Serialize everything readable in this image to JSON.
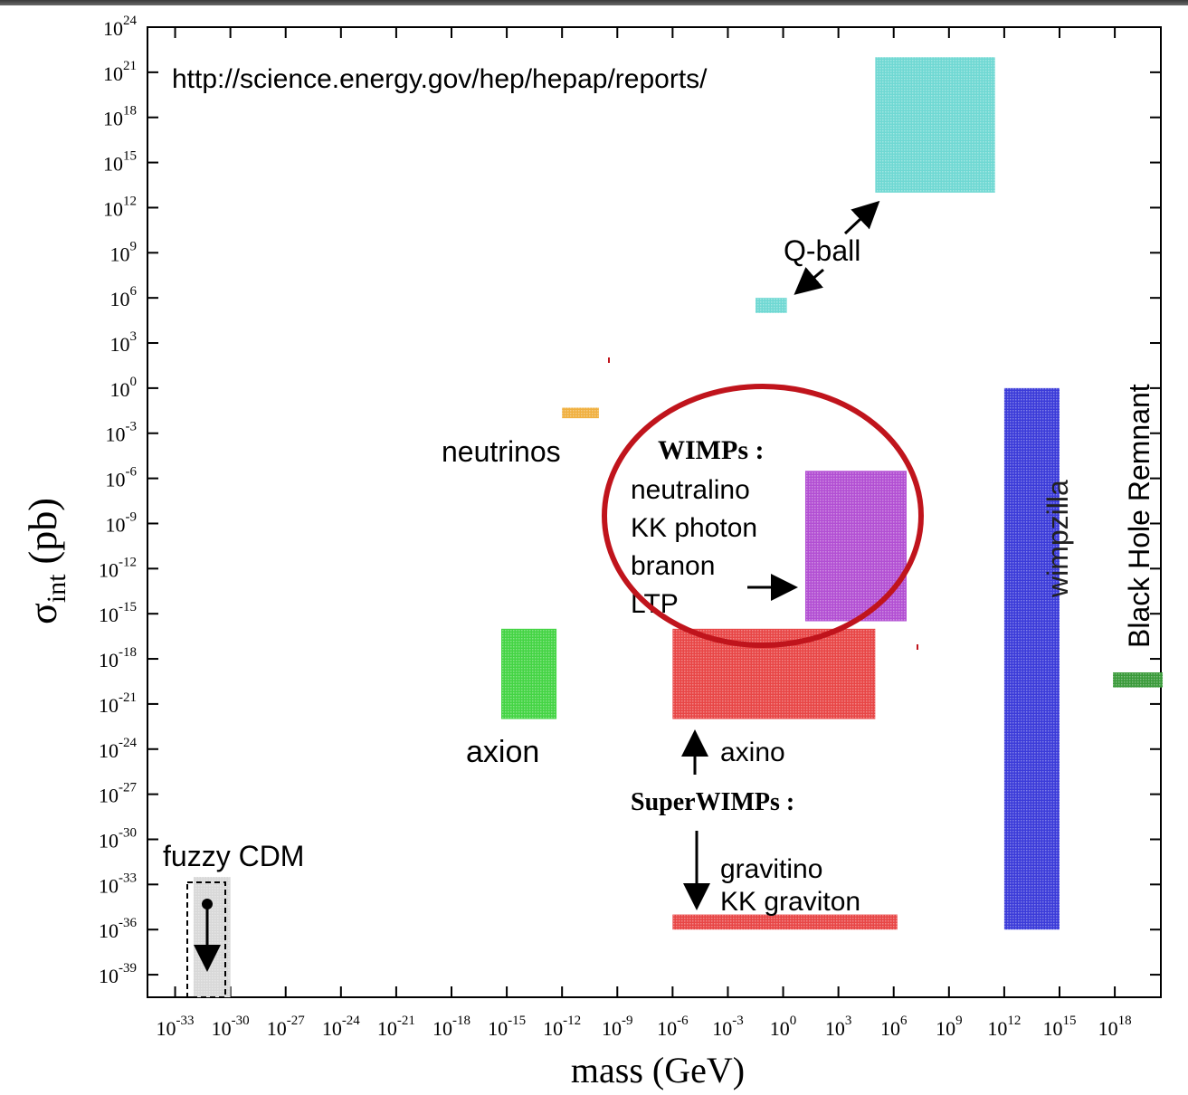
{
  "source_url": "http://science.energy.gov/hep/hepap/reports/",
  "chart_data": {
    "type": "scatter",
    "title": "",
    "xlabel": "mass (GeV)",
    "ylabel_symbol": "σ",
    "ylabel_subscript": "int",
    "ylabel_unit": "(pb)",
    "x_scale": "log10",
    "y_scale": "log10",
    "x_exponent_range": [
      -34.5,
      20.5
    ],
    "y_exponent_range": [
      -40.5,
      24
    ],
    "x_tick_exponents": [
      "-33",
      "-30",
      "-27",
      "-24",
      "-21",
      "-18",
      "-15",
      "-12",
      "-9",
      "-6",
      "-3",
      "0",
      "3",
      "6",
      "9",
      "12",
      "15",
      "18"
    ],
    "y_tick_exponents": [
      "24",
      "21",
      "18",
      "15",
      "12",
      "9",
      "6",
      "3",
      "0",
      "-3",
      "-6",
      "-9",
      "-12",
      "-15",
      "-18",
      "-21",
      "-24",
      "-27",
      "-30",
      "-33",
      "-36",
      "-39"
    ],
    "regions": [
      {
        "name": "Q-ball high",
        "x": [
          5,
          11.5
        ],
        "y": [
          13,
          22
        ],
        "color": "#6fd8d3"
      },
      {
        "name": "Q-ball low",
        "x": [
          -1.5,
          0.2
        ],
        "y": [
          5,
          6
        ],
        "color": "#6fd8d3"
      },
      {
        "name": "neutrinos",
        "x": [
          -12,
          -10
        ],
        "y": [
          -2,
          -1.3
        ],
        "color": "#f0b040"
      },
      {
        "name": "WIMPs",
        "x": [
          1.2,
          6.7
        ],
        "y": [
          -15.5,
          -5.5
        ],
        "color": "#b24fd3"
      },
      {
        "name": "wimpzilla",
        "x": [
          12,
          15
        ],
        "y": [
          -36,
          0
        ],
        "color": "#3b3bd9"
      },
      {
        "name": "Black Hole Remnant",
        "x": [
          17.9,
          20.6
        ],
        "y": [
          -19.9,
          -18.9
        ],
        "color": "#3a9a3a"
      },
      {
        "name": "axion",
        "x": [
          -15.3,
          -12.3
        ],
        "y": [
          -22,
          -16
        ],
        "color": "#44d444"
      },
      {
        "name": "axino",
        "x": [
          -6,
          5
        ],
        "y": [
          -22,
          -16
        ],
        "color": "#e84646"
      },
      {
        "name": "gravitino KK graviton",
        "x": [
          -6,
          6.2
        ],
        "y": [
          -36,
          -35
        ],
        "color": "#e84646"
      },
      {
        "name": "fuzzy CDM",
        "x": [
          -32,
          -30
        ],
        "y": [
          -40.5,
          -32.5
        ],
        "color": "#d8d8d8"
      }
    ]
  },
  "labels": {
    "qball": "Q-ball",
    "neutrinos": "neutrinos",
    "wimps_title": "WIMPs :",
    "wimps_line1": "neutralino",
    "wimps_line2": "KK photon",
    "wimps_line3": "branon",
    "wimps_line4": "LTP",
    "wimpzilla": "wimpzilla",
    "black_hole": "Black Hole Remnant",
    "axion": "axion",
    "axino": "axino",
    "superwimps_title": "SuperWIMPs :",
    "gravitino": "gravitino",
    "kk_graviton": "KK graviton",
    "fuzzy_cdm": "fuzzy CDM"
  },
  "colors": {
    "highlight_circle": "#c0141c",
    "axis": "#000000"
  }
}
